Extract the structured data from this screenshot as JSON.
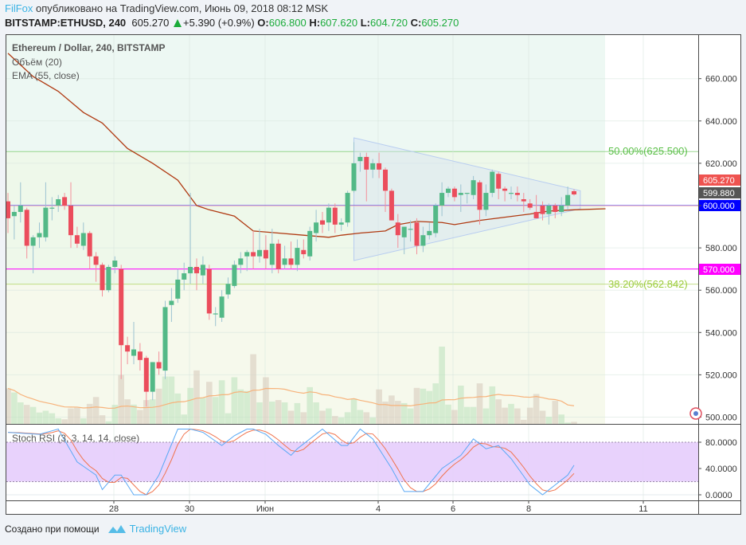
{
  "header": {
    "author": "FilFox",
    "published": "опубликовано на TradingView.com, Июнь 09, 2018 08:12 MSK",
    "symbol": "BITSTAMP:ETHUSD, 240",
    "last": "605.270",
    "change": "+5.390 (+0.9%)",
    "o_label": "O:",
    "o": "606.800",
    "h_label": "H:",
    "h": "607.620",
    "l_label": "L:",
    "l": "604.720",
    "c_label": "C:",
    "c": "605.270"
  },
  "legend": {
    "title": "Ethereum / Dollar, 240, BITSTAMP",
    "volume": "Объём (20)",
    "ema": "EMA (55, close)",
    "stoch": "Stoch RSI (3, 3, 14, 14, close)"
  },
  "price_axis": {
    "ticks": [
      "500.000",
      "520.000",
      "540.000",
      "560.000",
      "580.000",
      "600.000",
      "620.000",
      "640.000",
      "660.000"
    ],
    "tick_values": [
      500,
      520,
      540,
      560,
      580,
      600,
      620,
      640,
      660
    ],
    "badges": [
      {
        "text": "605.270",
        "value": 605.27,
        "bg": "#ef5350",
        "fg": "#ffffff"
      },
      {
        "text": "599.880",
        "value": 599.88,
        "bg": "#555555",
        "fg": "#ffffff"
      },
      {
        "text": "600.000",
        "value": 600.0,
        "bg": "#0000ff",
        "fg": "#ffffff"
      },
      {
        "text": "570.000",
        "value": 570.0,
        "bg": "#ff00ff",
        "fg": "#ffffff"
      }
    ]
  },
  "stoch_axis": {
    "ticks": [
      "80.0000",
      "40.0000",
      "0.0000"
    ],
    "tick_values": [
      80,
      40,
      0
    ]
  },
  "date_axis": {
    "ticks": [
      "28",
      "30",
      "Июн",
      "4",
      "6",
      "8",
      "11"
    ]
  },
  "fib": [
    {
      "label": "50.00%(625.500)",
      "value": 625.5,
      "color": "#5cc04a"
    },
    {
      "label": "38.20%(562.842)",
      "value": 562.842,
      "color": "#9ccc3c"
    }
  ],
  "hlines": [
    {
      "value": 600.0,
      "color": "#0000ff"
    },
    {
      "value": 570.0,
      "color": "#ff00ff"
    },
    {
      "value": 599.88,
      "color": "#f4b6b6"
    }
  ],
  "footer": {
    "made_with": "Создано при помощи",
    "brand": "TradingView"
  },
  "colors": {
    "up": "#53b987",
    "down": "#eb4d5c",
    "ema": "#b03a12",
    "vol_ma": "#f7b27a",
    "k": "#5aa9f5",
    "d": "#f0744e",
    "stoch_band": "#e6cdfc",
    "accent": "#3bb3e4"
  },
  "chart_data": {
    "type": "candlestick",
    "interval": "240",
    "ylim": [
      495,
      680
    ],
    "candles": [
      [
        602,
        606,
        587,
        594
      ],
      [
        595,
        600,
        584,
        597
      ],
      [
        597,
        611,
        592,
        600
      ],
      [
        598,
        599,
        575,
        581
      ],
      [
        581,
        586,
        568,
        585
      ],
      [
        585,
        592,
        580,
        587
      ],
      [
        585,
        611,
        583,
        599
      ],
      [
        599,
        604,
        593,
        599
      ],
      [
        600,
        605,
        597,
        603
      ],
      [
        604,
        606,
        598,
        600
      ],
      [
        600,
        611,
        580,
        586
      ],
      [
        586,
        590,
        580,
        582
      ],
      [
        581,
        592,
        579,
        587
      ],
      [
        587,
        588,
        570,
        576
      ],
      [
        576,
        578,
        564,
        572
      ],
      [
        572,
        573,
        557,
        560
      ],
      [
        560,
        572,
        559,
        571
      ],
      [
        571,
        576,
        568,
        574
      ],
      [
        570,
        572,
        518,
        534
      ],
      [
        534,
        538,
        525,
        531
      ],
      [
        529,
        545,
        525,
        532
      ],
      [
        531,
        535,
        522,
        527
      ],
      [
        528,
        529,
        505,
        512
      ],
      [
        512,
        526,
        508,
        526
      ],
      [
        526,
        531,
        520,
        523
      ],
      [
        522,
        555,
        518,
        552
      ],
      [
        553,
        561,
        545,
        555
      ],
      [
        556,
        570,
        554,
        565
      ],
      [
        565,
        573,
        560,
        568
      ],
      [
        568,
        606,
        563,
        571
      ],
      [
        571,
        575,
        560,
        568
      ],
      [
        567,
        576,
        563,
        572
      ],
      [
        570,
        572,
        546,
        549
      ],
      [
        549,
        552,
        543,
        549
      ],
      [
        547,
        560,
        545,
        557
      ],
      [
        558,
        566,
        556,
        563
      ],
      [
        562,
        574,
        561,
        572
      ],
      [
        572,
        578,
        568,
        575
      ],
      [
        576,
        579,
        569,
        578
      ],
      [
        578,
        588,
        570,
        576
      ],
      [
        576,
        589,
        573,
        579
      ],
      [
        579,
        586,
        570,
        575
      ],
      [
        572,
        589,
        568,
        582
      ],
      [
        582,
        584,
        568,
        570
      ],
      [
        572,
        581,
        570,
        575
      ],
      [
        575,
        583,
        570,
        572
      ],
      [
        572,
        584,
        569,
        580
      ],
      [
        579,
        584,
        575,
        577
      ],
      [
        576,
        590,
        574,
        588
      ],
      [
        587,
        598,
        583,
        592
      ],
      [
        593,
        597,
        587,
        591
      ],
      [
        592,
        601,
        588,
        599
      ],
      [
        599,
        601,
        587,
        591
      ],
      [
        591,
        594,
        588,
        592
      ],
      [
        592,
        607,
        590,
        606
      ],
      [
        607,
        630,
        606,
        620
      ],
      [
        621,
        625,
        616,
        623
      ],
      [
        623,
        625,
        602,
        617
      ],
      [
        617,
        622,
        613,
        620
      ],
      [
        620,
        625,
        613,
        617
      ],
      [
        617,
        618,
        597,
        607
      ],
      [
        607,
        608,
        593,
        593
      ],
      [
        592,
        596,
        580,
        586
      ],
      [
        585,
        590,
        577,
        590
      ],
      [
        589,
        593,
        583,
        589
      ],
      [
        592,
        594,
        577,
        581
      ],
      [
        581,
        590,
        578,
        586
      ],
      [
        586,
        592,
        584,
        588
      ],
      [
        587,
        601,
        585,
        600
      ],
      [
        600,
        611,
        595,
        606
      ],
      [
        606,
        609,
        604,
        608
      ],
      [
        608,
        609,
        602,
        604
      ],
      [
        605,
        610,
        597,
        606
      ],
      [
        606,
        606,
        601,
        606
      ],
      [
        605,
        614,
        603,
        612
      ],
      [
        611,
        612,
        591,
        598
      ],
      [
        598,
        610,
        595,
        606
      ],
      [
        606,
        617,
        604,
        616
      ],
      [
        615,
        616,
        603,
        608
      ],
      [
        608,
        609,
        602,
        607
      ],
      [
        606,
        609,
        603,
        606
      ],
      [
        606,
        609,
        602,
        605
      ],
      [
        603,
        606,
        597,
        602
      ],
      [
        601,
        603,
        598,
        599
      ],
      [
        597,
        605,
        594,
        594
      ],
      [
        600,
        602,
        593,
        596
      ],
      [
        596,
        601,
        591,
        600
      ],
      [
        600,
        601,
        594,
        597
      ],
      [
        597,
        604,
        595,
        600
      ],
      [
        600,
        609,
        598,
        605
      ],
      [
        606.8,
        607.62,
        604.72,
        605.27
      ]
    ],
    "volume_relative": [
      140,
      124,
      85,
      75,
      67,
      45,
      52,
      42,
      22,
      18,
      61,
      64,
      22,
      79,
      106,
      34,
      10,
      75,
      193,
      97,
      76,
      55,
      94,
      97,
      139,
      187,
      187,
      120,
      37,
      142,
      211,
      103,
      166,
      106,
      172,
      42,
      184,
      136,
      130,
      275,
      85,
      184,
      88,
      94,
      85,
      52,
      82,
      46,
      145,
      85,
      52,
      61,
      31,
      25,
      46,
      100,
      55,
      46,
      25,
      136,
      88,
      112,
      91,
      82,
      61,
      142,
      139,
      130,
      160,
      305,
      76,
      55,
      151,
      67,
      67,
      160,
      61,
      148,
      97,
      64,
      79,
      61,
      16,
      64,
      118,
      52,
      28,
      91,
      37,
      5,
      8
    ],
    "ema55_points": [
      [
        0,
        672
      ],
      [
        4,
        661
      ],
      [
        8,
        654
      ],
      [
        12,
        644
      ],
      [
        15,
        639
      ],
      [
        19,
        627
      ],
      [
        23,
        620
      ],
      [
        27,
        612
      ],
      [
        30,
        600
      ],
      [
        32,
        598
      ],
      [
        36,
        595
      ],
      [
        39,
        588
      ],
      [
        43,
        587
      ],
      [
        47,
        586
      ],
      [
        51,
        585
      ],
      [
        53,
        586
      ],
      [
        56,
        587
      ],
      [
        60,
        588
      ],
      [
        62,
        591
      ],
      [
        65,
        592.5
      ],
      [
        69,
        592
      ],
      [
        71,
        591
      ],
      [
        75,
        593
      ],
      [
        79,
        594.5
      ],
      [
        83,
        596
      ],
      [
        86,
        597.4
      ],
      [
        90,
        598
      ],
      [
        95,
        598.5
      ]
    ],
    "triangle": [
      [
        55,
        632
      ],
      [
        91,
        607
      ],
      [
        91,
        598.5
      ],
      [
        55,
        574
      ]
    ],
    "stoch_k_points": [
      [
        0,
        95
      ],
      [
        5,
        92
      ],
      [
        8,
        100
      ],
      [
        11,
        50
      ],
      [
        14,
        30
      ],
      [
        15,
        8
      ],
      [
        17,
        30
      ],
      [
        18,
        30
      ],
      [
        20,
        0
      ],
      [
        22,
        0
      ],
      [
        24,
        30
      ],
      [
        27,
        100
      ],
      [
        29,
        100
      ],
      [
        31,
        95
      ],
      [
        34,
        75
      ],
      [
        36,
        90
      ],
      [
        38,
        100
      ],
      [
        39,
        100
      ],
      [
        41,
        92
      ],
      [
        43,
        75
      ],
      [
        45,
        60
      ],
      [
        46,
        70
      ],
      [
        48,
        85
      ],
      [
        50,
        100
      ],
      [
        53,
        75
      ],
      [
        54,
        75
      ],
      [
        56,
        100
      ],
      [
        58,
        85
      ],
      [
        61,
        40
      ],
      [
        63,
        5
      ],
      [
        66,
        5
      ],
      [
        69,
        40
      ],
      [
        72,
        60
      ],
      [
        74,
        85
      ],
      [
        76,
        70
      ],
      [
        78,
        75
      ],
      [
        80,
        55
      ],
      [
        83,
        15
      ],
      [
        85,
        0
      ],
      [
        87,
        15
      ],
      [
        89,
        30
      ],
      [
        90,
        45
      ]
    ],
    "stoch_bands": [
      80,
      20
    ],
    "stoch_ylim": [
      0,
      100
    ]
  }
}
